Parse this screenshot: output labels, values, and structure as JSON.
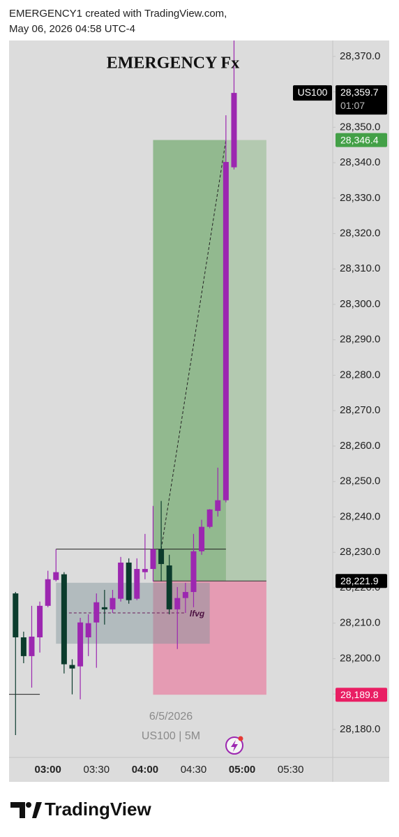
{
  "header": {
    "line1": "EMERGENCY1 created with TradingView.com,",
    "line2": "May 06, 2026 04:58 UTC-4"
  },
  "footer": {
    "brand": "TradingView"
  },
  "chart_data": {
    "type": "candlestick",
    "title": "EMERGENCY Fx",
    "subtitle": [
      "6/5/2026",
      "US100 | 5M"
    ],
    "symbol": "US100",
    "countdown": "01:07",
    "last": {
      "value": 28359.7,
      "label": "28,359.7"
    },
    "grid": false,
    "up_color": "#9c27b0",
    "down_color": "#0b3b2c",
    "xlim": [
      "02:36",
      "05:56"
    ],
    "xticks": [
      "03:00",
      "03:30",
      "04:00",
      "04:30",
      "05:00",
      "05:30"
    ],
    "ylim": [
      28172.1,
      28374.5
    ],
    "yticks": [
      {
        "value": 28180,
        "label": "28,180.0"
      },
      {
        "value": 28190,
        "label": "28,190.0"
      },
      {
        "value": 28200,
        "label": "28,200.0"
      },
      {
        "value": 28210,
        "label": "28,210.0"
      },
      {
        "value": 28220,
        "label": "28,220.0"
      },
      {
        "value": 28230,
        "label": "28,230.0"
      },
      {
        "value": 28240,
        "label": "28,240.0"
      },
      {
        "value": 28250,
        "label": "28,250.0"
      },
      {
        "value": 28260,
        "label": "28,260.0"
      },
      {
        "value": 28270,
        "label": "28,270.0"
      },
      {
        "value": 28280,
        "label": "28,280.0"
      },
      {
        "value": 28290,
        "label": "28,290.0"
      },
      {
        "value": 28300,
        "label": "28,300.0"
      },
      {
        "value": 28310,
        "label": "28,310.0"
      },
      {
        "value": 28320,
        "label": "28,320.0"
      },
      {
        "value": 28330,
        "label": "28,330.0"
      },
      {
        "value": 28340,
        "label": "28,340.0"
      },
      {
        "value": 28350,
        "label": "28,350.0"
      },
      {
        "value": 28360,
        "label": "28,360.0"
      },
      {
        "value": 28370,
        "label": "28,370.0"
      }
    ],
    "x": [
      "02:40",
      "02:45",
      "02:50",
      "02:55",
      "03:00",
      "03:05",
      "03:10",
      "03:15",
      "03:20",
      "03:25",
      "03:30",
      "03:35",
      "03:40",
      "03:45",
      "03:50",
      "03:55",
      "04:00",
      "04:05",
      "04:10",
      "04:15",
      "04:20",
      "04:25",
      "04:30",
      "04:35",
      "04:40",
      "04:45",
      "04:50",
      "04:55"
    ],
    "open": [
      28218.4,
      28206.0,
      28200.7,
      28206.0,
      28214.9,
      28222.2,
      28223.8,
      28198.2,
      28197.8,
      28206.0,
      28210.2,
      28214.5,
      28213.9,
      28216.9,
      28227.1,
      28216.9,
      28224.4,
      28225.3,
      28230.9,
      28226.3,
      28213.9,
      28217.1,
      28218.8,
      28230.3,
      28237.2,
      28241.7,
      28244.7,
      28338.7
    ],
    "high": [
      28218.8,
      28207.6,
      28214.9,
      28216.1,
      28224.8,
      28230.9,
      28224.4,
      28199.8,
      28211.5,
      28212.5,
      28218.4,
      28219.4,
      28219.4,
      28228.7,
      28228.3,
      28228.3,
      28235.2,
      28243.1,
      28244.5,
      28229.3,
      28220.2,
      28221.4,
      28235.2,
      28239.2,
      28242.2,
      28253.9,
      28353.4,
      28374.5
    ],
    "low": [
      28178.4,
      28198.7,
      28191.8,
      28201.7,
      28214.5,
      28221.8,
      28195.8,
      28189.9,
      28188.5,
      28200.7,
      28197.4,
      28209.6,
      28212.9,
      28216.1,
      28215.5,
      28216.5,
      28222.4,
      28221.8,
      28221.8,
      28212.5,
      28202.7,
      28212.9,
      28214.5,
      28229.3,
      28236.8,
      28240.1,
      28244.1,
      28338.1
    ],
    "close": [
      28206.0,
      28200.7,
      28206.2,
      28214.9,
      28222.4,
      28224.4,
      28198.4,
      28197.2,
      28210.2,
      28210.0,
      28215.9,
      28213.9,
      28217.1,
      28227.1,
      28216.5,
      28225.3,
      28225.3,
      28230.9,
      28226.7,
      28213.9,
      28217.1,
      28218.8,
      28230.3,
      28237.2,
      28242.1,
      28244.7,
      28340.2,
      28359.7
    ],
    "position": {
      "start": "04:05",
      "active_end": "04:50",
      "end": "05:15",
      "target": {
        "value": 28346.4,
        "label": "28,346.4"
      },
      "entry": {
        "value": 28221.9,
        "label": "28,221.9"
      },
      "stop": {
        "value": 28189.8,
        "label": "28,189.8"
      },
      "profit_color": "#b3c9b0",
      "profit_active_color": "#92b98f",
      "loss_color": "#e59bb3",
      "target_tag_color": "#43a047",
      "entry_tag_color": "#000000",
      "stop_tag_color": "#e91e63"
    },
    "box": {
      "start": "03:05",
      "end": "04:40",
      "top": 28221.4,
      "bottom": 28204.2,
      "color": "#7f939a",
      "level": 28212.9,
      "level_start": "03:10",
      "level_end": "04:25",
      "label": "lfvg"
    },
    "lines": [
      {
        "x": [
          "03:05",
          "04:50"
        ],
        "y": [
          28230.9,
          28230.9
        ],
        "dash": false,
        "color": "#222222"
      },
      {
        "x": [
          "02:36",
          "02:55"
        ],
        "y": [
          28189.9,
          28189.9
        ],
        "dash": false,
        "color": "#222222"
      },
      {
        "x": [
          "04:10",
          "04:50"
        ],
        "y": [
          28230.9,
          28346.4
        ],
        "dash": true,
        "color": "#222222"
      }
    ]
  }
}
